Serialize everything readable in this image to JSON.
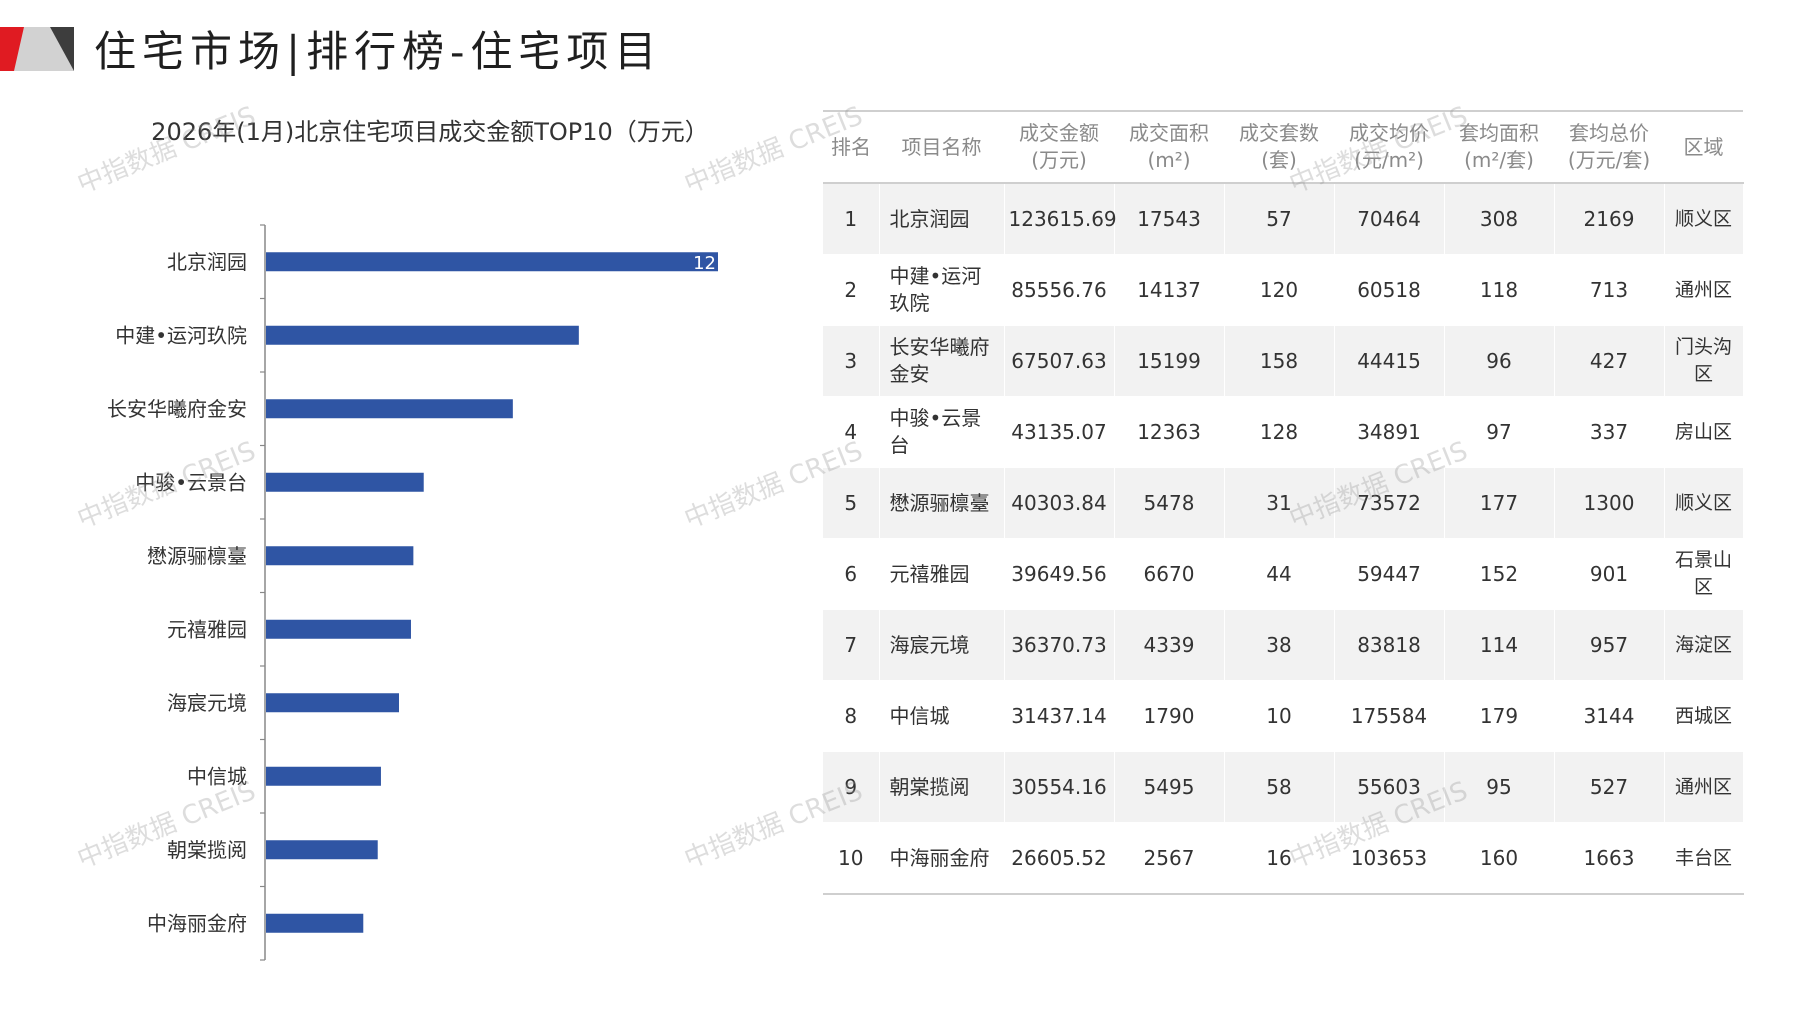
{
  "page": {
    "title": "住宅市场|排行榜-住宅项目",
    "brand_colors": {
      "red": "#e01b22",
      "gray": "#c8c8c8",
      "dark": "#3d3d3d",
      "bar": "#2f55a4"
    }
  },
  "watermarks": [
    "中指数据 CREIS",
    "中指数据 CREIS",
    "中指数据 CREIS",
    "中指数据 CREIS",
    "中指数据 CREIS",
    "中指数据 CREIS",
    "中指数据 CREIS",
    "中指数据 CREIS",
    "中指数据 CREIS"
  ],
  "chart_data": {
    "type": "bar",
    "orientation": "horizontal",
    "title": "2026年(1月)北京住宅项目成交金额TOP10（万元）",
    "categories": [
      "北京润园",
      "中建•运河玖院",
      "长安华曦府金安",
      "中骏•云景台",
      "懋源骊檩臺",
      "元禧雅园",
      "海宸元境",
      "中信城",
      "朝棠揽阅",
      "中海丽金府"
    ],
    "values": [
      123615.69,
      85556.76,
      67507.63,
      43135.07,
      40303.84,
      39649.56,
      36370.73,
      31437.14,
      30554.16,
      26605.52
    ],
    "visible_data_label": "12",
    "xlim": [
      0,
      200000
    ],
    "grid": false,
    "legend": "none"
  },
  "table": {
    "headers": [
      [
        "排名"
      ],
      [
        "项目名称"
      ],
      [
        "成交金额",
        "(万元)"
      ],
      [
        "成交面积",
        "(m²)"
      ],
      [
        "成交套数",
        "(套)"
      ],
      [
        "成交均价",
        "(元/m²)"
      ],
      [
        "套均面积",
        "(m²/套)"
      ],
      [
        "套均总价",
        "(万元/套)"
      ],
      [
        "区域"
      ]
    ],
    "rows": [
      [
        "1",
        "北京润园",
        "123615.69",
        "17543",
        "57",
        "70464",
        "308",
        "2169",
        "顺义区"
      ],
      [
        "2",
        "中建•运河玖院",
        "85556.76",
        "14137",
        "120",
        "60518",
        "118",
        "713",
        "通州区"
      ],
      [
        "3",
        "长安华曦府金安",
        "67507.63",
        "15199",
        "158",
        "44415",
        "96",
        "427",
        "门头沟区"
      ],
      [
        "4",
        "中骏•云景台",
        "43135.07",
        "12363",
        "128",
        "34891",
        "97",
        "337",
        "房山区"
      ],
      [
        "5",
        "懋源骊檩臺",
        "40303.84",
        "5478",
        "31",
        "73572",
        "177",
        "1300",
        "顺义区"
      ],
      [
        "6",
        "元禧雅园",
        "39649.56",
        "6670",
        "44",
        "59447",
        "152",
        "901",
        "石景山区"
      ],
      [
        "7",
        "海宸元境",
        "36370.73",
        "4339",
        "38",
        "83818",
        "114",
        "957",
        "海淀区"
      ],
      [
        "8",
        "中信城",
        "31437.14",
        "1790",
        "10",
        "175584",
        "179",
        "3144",
        "西城区"
      ],
      [
        "9",
        "朝棠揽阅",
        "30554.16",
        "5495",
        "58",
        "55603",
        "95",
        "527",
        "通州区"
      ],
      [
        "10",
        "中海丽金府",
        "26605.52",
        "2567",
        "16",
        "103653",
        "160",
        "1663",
        "丰台区"
      ]
    ]
  }
}
